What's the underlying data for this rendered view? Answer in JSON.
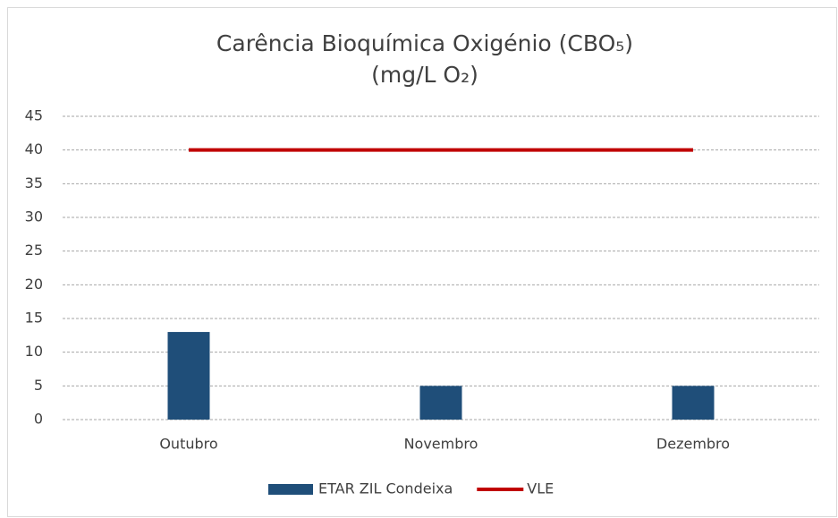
{
  "chart_data": {
    "type": "bar",
    "title": "Carência Bioquímica Oxigénio (CBO₅)",
    "subtitle": "(mg/L O₂)",
    "categories": [
      "Outubro",
      "Novembro",
      "Dezembro"
    ],
    "series": [
      {
        "name": "ETAR ZIL Condeixa",
        "color": "#1f4e79",
        "type": "bar",
        "values": [
          13,
          5,
          5
        ]
      },
      {
        "name": "VLE",
        "color": "#c00000",
        "type": "line",
        "values": [
          40,
          40,
          40
        ]
      }
    ],
    "ylim": [
      0,
      45
    ],
    "yticks": [
      0,
      5,
      10,
      15,
      20,
      25,
      30,
      35,
      40,
      45
    ],
    "grid": true,
    "legend": "bottom"
  }
}
